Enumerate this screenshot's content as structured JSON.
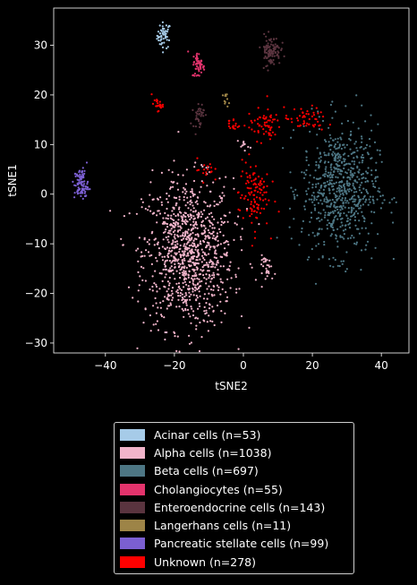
{
  "chart_data": {
    "type": "scatter",
    "xlabel": "tSNE2",
    "ylabel": "tSNE1",
    "xlim": [
      -55,
      48
    ],
    "ylim": [
      -32,
      37.5
    ],
    "xticks": [
      -40,
      -20,
      0,
      20,
      40
    ],
    "yticks": [
      -30,
      -20,
      -10,
      0,
      10,
      20,
      30
    ],
    "grid": false,
    "legend_position": "below",
    "series": [
      {
        "name": "Acinar cells (n=53)",
        "color": "#a6cbe8",
        "n": 53,
        "clusters": [
          {
            "cx": -23,
            "cy": 32,
            "sx": 1.0,
            "sy": 1.3,
            "frac": 1.0
          }
        ]
      },
      {
        "name": "Alpha cells (n=1038)",
        "color": "#f1b4ca",
        "n": 1038,
        "clusters": [
          {
            "cx": -16,
            "cy": -12,
            "sx": 6.5,
            "sy": 7.5,
            "frac": 0.96
          },
          {
            "cx": 7,
            "cy": -15,
            "sx": 1.2,
            "sy": 1.3,
            "frac": 0.03
          },
          {
            "cx": 0,
            "cy": 10,
            "sx": 0.8,
            "sy": 0.6,
            "frac": 0.01
          }
        ]
      },
      {
        "name": "Beta cells (n=697)",
        "color": "#4d7684",
        "n": 697,
        "clusters": [
          {
            "cx": 28,
            "cy": 1,
            "sx": 5.5,
            "sy": 6.5,
            "frac": 1.0
          }
        ]
      },
      {
        "name": "Cholangiocytes (n=55)",
        "color": "#e3336c",
        "n": 55,
        "clusters": [
          {
            "cx": -13,
            "cy": 26,
            "sx": 0.9,
            "sy": 1.3,
            "frac": 1.0
          }
        ]
      },
      {
        "name": "Enteroendocrine cells (n=143)",
        "color": "#5a343f",
        "n": 143,
        "clusters": [
          {
            "cx": 8,
            "cy": 29,
            "sx": 1.4,
            "sy": 1.5,
            "frac": 0.75
          },
          {
            "cx": -13,
            "cy": 16,
            "sx": 0.8,
            "sy": 1.3,
            "frac": 0.25
          }
        ]
      },
      {
        "name": "Langerhans cells (n=11)",
        "color": "#9d8447",
        "n": 11,
        "clusters": [
          {
            "cx": -5,
            "cy": 19,
            "sx": 0.4,
            "sy": 0.6,
            "frac": 1.0
          }
        ]
      },
      {
        "name": "Pancreatic stellate cells (n=99)",
        "color": "#7b5fd1",
        "n": 99,
        "clusters": [
          {
            "cx": -47,
            "cy": 2,
            "sx": 1.0,
            "sy": 1.6,
            "frac": 1.0
          }
        ]
      },
      {
        "name": "Unknown (n=278)",
        "color": "#ff0000",
        "n": 278,
        "clusters": [
          {
            "cx": -25,
            "cy": 18,
            "sx": 0.8,
            "sy": 0.6,
            "frac": 0.08
          },
          {
            "cx": 3,
            "cy": 0,
            "sx": 2.2,
            "sy": 3.5,
            "frac": 0.4
          },
          {
            "cx": 6,
            "cy": 14,
            "sx": 2.5,
            "sy": 1.6,
            "frac": 0.22
          },
          {
            "cx": 18,
            "cy": 15,
            "sx": 3,
            "sy": 1.2,
            "frac": 0.18
          },
          {
            "cx": -11,
            "cy": 5,
            "sx": 1.2,
            "sy": 1.2,
            "frac": 0.06
          },
          {
            "cx": -3,
            "cy": 14,
            "sx": 0.8,
            "sy": 0.7,
            "frac": 0.06
          }
        ]
      }
    ]
  }
}
